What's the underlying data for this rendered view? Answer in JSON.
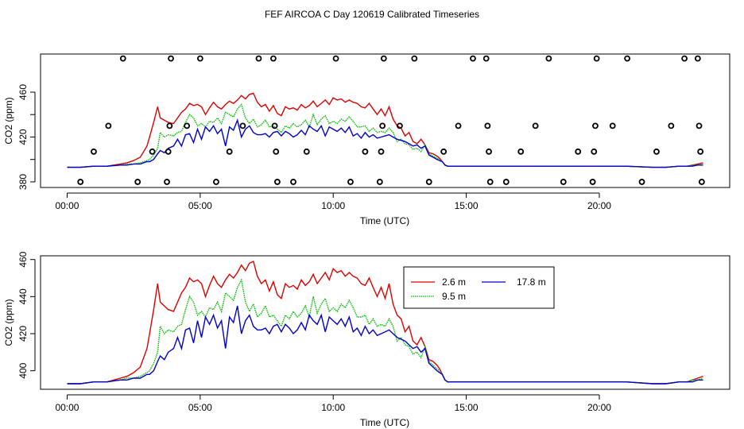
{
  "title": "FEF AIRCOA C  Day 120619  Calibrated Timeseries",
  "colors": {
    "2.6 m": "#dd0000",
    "9.5 m": "#00bb00",
    "17.8 m": "#0000cc",
    "axis": "#000000"
  },
  "chart_data": [
    {
      "type": "scatter",
      "title": "FEF AIRCOA C  Day 120619  Calibrated Timeseries",
      "xlabel": "Time (UTC)",
      "ylabel": "CO2 (ppm)",
      "xlim": [
        -1,
        24.9
      ],
      "ylim": [
        375,
        494
      ],
      "x_ticks": [
        0,
        5,
        10,
        15,
        20
      ],
      "x_tick_labels": [
        "00:00",
        "05:00",
        "10:00",
        "15:00",
        "20:00"
      ],
      "y_ticks": [
        380,
        420,
        460
      ],
      "y_tick_labels": [
        "380",
        "420",
        "460"
      ],
      "y_minor_ticks": [
        400,
        440
      ],
      "grid": false,
      "series": [
        {
          "marker": "open-circle",
          "points": [
            [
              0.5,
              380
            ],
            [
              1.0,
              407
            ],
            [
              1.55,
              430
            ],
            [
              2.1,
              490
            ],
            [
              2.65,
              380
            ],
            [
              3.2,
              407
            ],
            [
              3.75,
              380
            ],
            [
              3.8,
              407
            ],
            [
              3.85,
              430
            ],
            [
              3.9,
              490
            ],
            [
              4.5,
              430
            ],
            [
              5.0,
              490
            ],
            [
              5.6,
              380
            ],
            [
              6.1,
              407
            ],
            [
              6.6,
              430
            ],
            [
              7.2,
              490
            ],
            [
              7.75,
              490
            ],
            [
              7.8,
              430
            ],
            [
              7.85,
              407
            ],
            [
              7.9,
              380
            ],
            [
              8.5,
              380
            ],
            [
              9.0,
              407
            ],
            [
              10.1,
              490
            ],
            [
              10.65,
              380
            ],
            [
              11.2,
              407
            ],
            [
              11.75,
              380
            ],
            [
              11.8,
              407
            ],
            [
              11.85,
              430
            ],
            [
              11.9,
              490
            ],
            [
              12.5,
              430
            ],
            [
              13.05,
              490
            ],
            [
              13.6,
              380
            ],
            [
              14.15,
              407
            ],
            [
              14.7,
              430
            ],
            [
              15.25,
              490
            ],
            [
              15.75,
              490
            ],
            [
              15.8,
              430
            ],
            [
              15.85,
              407
            ],
            [
              15.9,
              380
            ],
            [
              16.5,
              380
            ],
            [
              17.05,
              407
            ],
            [
              17.6,
              430
            ],
            [
              18.1,
              490
            ],
            [
              18.65,
              380
            ],
            [
              19.2,
              407
            ],
            [
              19.75,
              380
            ],
            [
              19.8,
              407
            ],
            [
              19.85,
              430
            ],
            [
              19.9,
              490
            ],
            [
              20.5,
              430
            ],
            [
              21.05,
              490
            ],
            [
              21.6,
              380
            ],
            [
              22.15,
              407
            ],
            [
              22.7,
              430
            ],
            [
              23.2,
              490
            ],
            [
              23.7,
              490
            ],
            [
              23.75,
              430
            ],
            [
              23.8,
              407
            ],
            [
              23.85,
              380
            ]
          ]
        },
        {
          "name": "2.6 m",
          "x": [
            0,
            0.5,
            1,
            1.5,
            2,
            2.25,
            2.5,
            2.75,
            3,
            3.1,
            3.25,
            3.4,
            3.5,
            3.65,
            3.8,
            4,
            4.15,
            4.3,
            4.45,
            4.6,
            4.75,
            4.9,
            5.05,
            5.2,
            5.35,
            5.5,
            5.65,
            5.8,
            5.95,
            6.1,
            6.25,
            6.4,
            6.55,
            6.7,
            6.85,
            7,
            7.15,
            7.3,
            7.45,
            7.6,
            7.75,
            7.9,
            8.05,
            8.2,
            8.35,
            8.5,
            8.65,
            8.8,
            8.95,
            9.1,
            9.25,
            9.4,
            9.55,
            9.7,
            9.85,
            10,
            10.15,
            10.3,
            10.45,
            10.6,
            10.75,
            10.9,
            11.05,
            11.2,
            11.35,
            11.5,
            11.65,
            11.8,
            11.95,
            12.1,
            12.25,
            12.4,
            12.55,
            12.7,
            12.85,
            13,
            13.15,
            13.3,
            13.45,
            13.6,
            13.75,
            13.9,
            14,
            14.1,
            14.2,
            14.3,
            14.5,
            15,
            16,
            17,
            18,
            19,
            20,
            21,
            22,
            22.5,
            23,
            23.3,
            23.5,
            23.7,
            23.9
          ],
          "y": [
            393,
            393,
            394,
            394,
            396,
            397,
            399,
            402,
            412,
            420,
            433,
            447,
            437,
            435,
            433,
            432,
            437,
            442,
            445,
            450,
            448,
            449,
            447,
            440,
            446,
            451,
            447,
            445,
            449,
            452,
            450,
            453,
            457,
            454,
            458,
            459,
            451,
            447,
            449,
            443,
            448,
            441,
            439,
            447,
            445,
            446,
            444,
            449,
            446,
            448,
            452,
            447,
            450,
            453,
            449,
            455,
            453,
            454,
            451,
            453,
            451,
            450,
            447,
            446,
            450,
            445,
            440,
            445,
            439,
            447,
            436,
            430,
            428,
            421,
            424,
            416,
            414,
            418,
            413,
            406,
            405,
            403,
            401,
            398,
            395,
            394,
            394,
            394,
            394,
            394,
            394,
            394,
            394,
            394,
            393,
            393,
            394,
            394,
            395,
            396,
            397
          ]
        },
        {
          "name": "9.5 m",
          "x": [
            0,
            0.5,
            1,
            1.5,
            2,
            2.25,
            2.5,
            2.75,
            3,
            3.1,
            3.25,
            3.4,
            3.5,
            3.65,
            3.8,
            4,
            4.15,
            4.3,
            4.45,
            4.6,
            4.75,
            4.9,
            5.05,
            5.2,
            5.35,
            5.5,
            5.65,
            5.8,
            5.95,
            6.1,
            6.25,
            6.4,
            6.55,
            6.7,
            6.85,
            7,
            7.15,
            7.3,
            7.45,
            7.6,
            7.75,
            7.9,
            8.05,
            8.2,
            8.35,
            8.5,
            8.65,
            8.8,
            8.95,
            9.1,
            9.25,
            9.4,
            9.55,
            9.7,
            9.85,
            10,
            10.15,
            10.3,
            10.45,
            10.6,
            10.75,
            10.9,
            11.05,
            11.2,
            11.35,
            11.5,
            11.65,
            11.8,
            11.95,
            12.1,
            12.25,
            12.4,
            12.55,
            12.7,
            12.85,
            13,
            13.15,
            13.3,
            13.45,
            13.6,
            13.75,
            13.9,
            14,
            14.1,
            14.2,
            14.3,
            14.5,
            15,
            16,
            17,
            18,
            19,
            20,
            21,
            22,
            22.5,
            23,
            23.3,
            23.5,
            23.7,
            23.9
          ],
          "y": [
            393,
            393,
            394,
            394,
            395,
            396,
            396,
            397,
            399,
            400,
            404,
            410,
            424,
            420,
            422,
            421,
            424,
            425,
            433,
            440,
            437,
            430,
            432,
            429,
            434,
            433,
            437,
            432,
            442,
            440,
            438,
            445,
            449,
            437,
            432,
            436,
            429,
            431,
            435,
            429,
            430,
            427,
            424,
            430,
            428,
            432,
            429,
            431,
            435,
            429,
            440,
            431,
            436,
            439,
            432,
            434,
            432,
            436,
            434,
            438,
            434,
            429,
            429,
            430,
            425,
            428,
            424,
            425,
            424,
            428,
            424,
            416,
            418,
            414,
            413,
            409,
            410,
            407,
            413,
            405,
            403,
            401,
            400,
            398,
            395,
            394,
            394,
            394,
            394,
            394,
            394,
            394,
            394,
            394,
            393,
            393,
            394,
            394,
            395,
            395,
            396
          ]
        },
        {
          "name": "17.8 m",
          "x": [
            0,
            0.5,
            1,
            1.5,
            2,
            2.25,
            2.5,
            2.75,
            3,
            3.1,
            3.25,
            3.4,
            3.5,
            3.65,
            3.8,
            4,
            4.15,
            4.3,
            4.45,
            4.6,
            4.75,
            4.9,
            5.05,
            5.2,
            5.35,
            5.5,
            5.65,
            5.8,
            5.95,
            6.1,
            6.25,
            6.4,
            6.55,
            6.7,
            6.85,
            7,
            7.15,
            7.3,
            7.45,
            7.6,
            7.75,
            7.9,
            8.05,
            8.2,
            8.35,
            8.5,
            8.65,
            8.8,
            8.95,
            9.1,
            9.25,
            9.4,
            9.55,
            9.7,
            9.85,
            10,
            10.15,
            10.3,
            10.45,
            10.6,
            10.75,
            10.9,
            11.05,
            11.2,
            11.35,
            11.5,
            11.65,
            11.8,
            11.95,
            12.1,
            12.25,
            12.4,
            12.55,
            12.7,
            12.85,
            13,
            13.15,
            13.3,
            13.45,
            13.6,
            13.75,
            13.9,
            14,
            14.1,
            14.2,
            14.3,
            14.5,
            15,
            16,
            17,
            18,
            19,
            20,
            21,
            22,
            22.5,
            23,
            23.3,
            23.5,
            23.7,
            23.9
          ],
          "y": [
            393,
            393,
            394,
            394,
            395,
            395,
            396,
            396,
            398,
            398,
            400,
            405,
            408,
            406,
            410,
            412,
            418,
            412,
            422,
            423,
            415,
            427,
            418,
            429,
            425,
            430,
            423,
            427,
            412,
            429,
            426,
            435,
            420,
            427,
            430,
            424,
            422,
            422,
            423,
            420,
            424,
            425,
            421,
            425,
            423,
            420,
            422,
            426,
            422,
            430,
            427,
            425,
            430,
            421,
            429,
            427,
            425,
            428,
            424,
            429,
            421,
            423,
            419,
            424,
            420,
            422,
            419,
            420,
            421,
            422,
            420,
            418,
            417,
            416,
            414,
            412,
            413,
            410,
            412,
            404,
            402,
            400,
            399,
            398,
            395,
            394,
            394,
            394,
            394,
            394,
            394,
            394,
            394,
            394,
            393,
            393,
            394,
            394,
            394,
            395,
            395
          ]
        }
      ]
    },
    {
      "type": "line",
      "xlabel": "Time (UTC)",
      "ylabel": "CO2 (ppm)",
      "xlim": [
        -1,
        24.9
      ],
      "ylim": [
        390,
        462
      ],
      "x_ticks": [
        0,
        5,
        10,
        15,
        20
      ],
      "x_tick_labels": [
        "00:00",
        "05:00",
        "10:00",
        "15:00",
        "20:00"
      ],
      "y_ticks": [
        400,
        420,
        440,
        460
      ],
      "y_tick_labels": [
        "400",
        "420",
        "440",
        "460"
      ],
      "grid": false,
      "legend": {
        "position": "top-right",
        "entries": [
          {
            "label": "2.6 m",
            "series": "2.6 m",
            "color": "#dd0000"
          },
          {
            "label": "9.5 m",
            "series": "9.5 m",
            "color": "#00bb00"
          },
          {
            "label": "17.8 m",
            "series": "17.8 m",
            "color": "#0000cc"
          }
        ]
      },
      "series_ref": [
        "2.6 m",
        "9.5 m",
        "17.8 m"
      ]
    }
  ]
}
